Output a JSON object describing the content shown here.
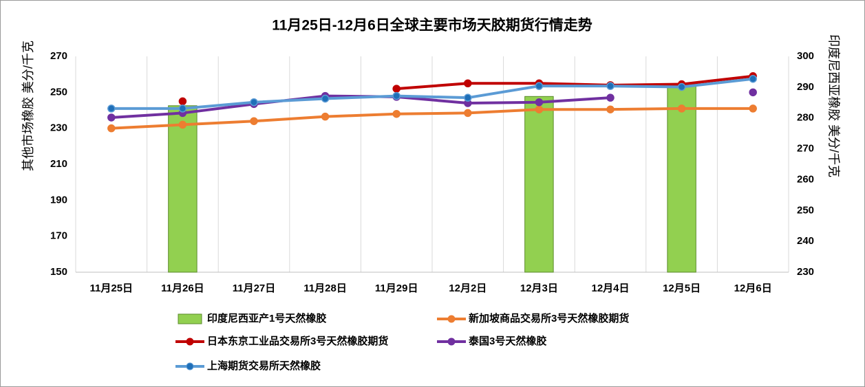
{
  "chart_data": {
    "type": "combo",
    "title": "11月25日-12月6日全球主要市场天胶期货行情走势",
    "y_label": "其他市场橡胶  美分/千克",
    "y2_label": "印度尼西亚橡胶  美分/千克",
    "categories": [
      "11月25日",
      "11月26日",
      "11月27日",
      "11月28日",
      "11月29日",
      "12月2日",
      "12月3日",
      "12月4日",
      "12月5日",
      "12月6日"
    ],
    "ylim": [
      150,
      270
    ],
    "yticks": [
      150,
      170,
      190,
      210,
      230,
      250,
      270
    ],
    "y2lim": [
      230,
      300
    ],
    "y2ticks": [
      230,
      240,
      250,
      260,
      270,
      280,
      290,
      300
    ],
    "grid": "x",
    "series": [
      {
        "name": "印度尼西亚产1号天然橡胶",
        "type": "bar",
        "axis": "y2",
        "color": "#92d050",
        "values": [
          null,
          284,
          null,
          null,
          null,
          null,
          287,
          null,
          291,
          null
        ]
      },
      {
        "name": "新加坡商品交易所3号天然橡胶期货",
        "type": "line",
        "color": "#ed7d31",
        "values": [
          230,
          232,
          234,
          236.5,
          238,
          238.5,
          240.5,
          240.5,
          241,
          241
        ]
      },
      {
        "name": "日本东京工业品交易所3号天然橡胶期货",
        "type": "line",
        "color": "#c00000",
        "values": [
          null,
          245,
          null,
          null,
          252,
          255,
          255,
          254,
          254.5,
          259
        ]
      },
      {
        "name": "泰国3号天然橡胶",
        "type": "line",
        "color": "#7030a0",
        "values": [
          236,
          238.5,
          243.5,
          248,
          247.5,
          244,
          244.5,
          247,
          null,
          250
        ]
      },
      {
        "name": "上海期货交易所天然橡胶",
        "type": "line",
        "color": "#5b9bd5",
        "values": [
          241,
          241,
          244.5,
          246.5,
          248,
          247,
          253.5,
          253.5,
          253,
          257.5
        ]
      }
    ]
  }
}
